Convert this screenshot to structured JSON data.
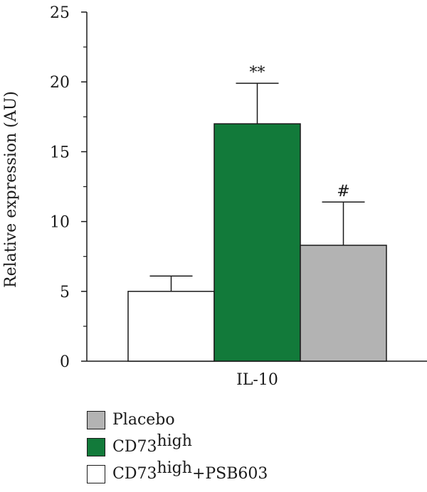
{
  "chart_data": {
    "type": "bar",
    "categories": [
      "IL-10"
    ],
    "xlabel": "",
    "ylabel": "Relative expression (AU)",
    "ylim": [
      0,
      25
    ],
    "yticks": [
      0,
      5,
      10,
      15,
      20,
      25
    ],
    "grid": false,
    "legend_placement": "bottom-left",
    "series": [
      {
        "name": "CD73high+PSB603",
        "legend_parts": [
          "CD73",
          "high",
          "+PSB603"
        ],
        "color": "#ffffff",
        "values": [
          5.0
        ],
        "error": [
          1.1
        ],
        "annotation": ""
      },
      {
        "name": "CD73high",
        "legend_parts": [
          "CD73",
          "high",
          ""
        ],
        "color": "#127a3a",
        "values": [
          17.0
        ],
        "error": [
          2.9
        ],
        "annotation": "**"
      },
      {
        "name": "Placebo",
        "legend_parts": [
          "Placebo",
          "",
          ""
        ],
        "color": "#b3b3b3",
        "values": [
          8.3
        ],
        "error": [
          3.1
        ],
        "annotation": "#"
      }
    ],
    "legend_order": [
      2,
      1,
      0
    ]
  }
}
